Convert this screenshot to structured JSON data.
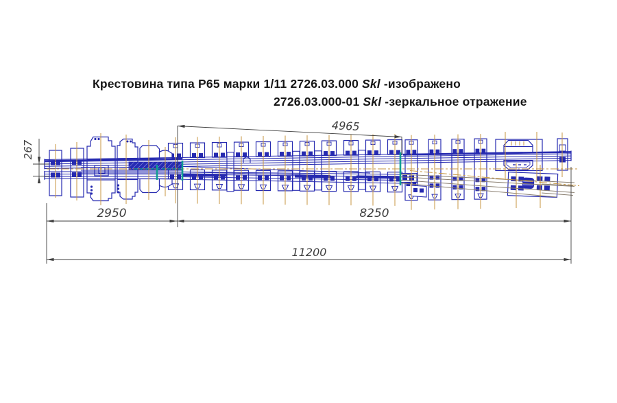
{
  "title": {
    "line1_main": "Крестовина типа Р65 марки 1/11 2726.03.000",
    "line1_code": "Skl",
    "line1_tail": "-изображено",
    "line2_main": "2726.03.000-01",
    "line2_code": "Skl",
    "line2_tail": "-зеркальное отражение"
  },
  "dimensions": {
    "heel_spread": "267",
    "front_section": "2950",
    "slanted_length": "4965",
    "rear_section": "8250",
    "total_length": "11200"
  },
  "colors": {
    "linework": "#262ab0",
    "centerlines": "#c79640",
    "joint_marks": "#0f9e92",
    "dimension_lines": "#3d3d3d",
    "background": "#ffffff"
  }
}
